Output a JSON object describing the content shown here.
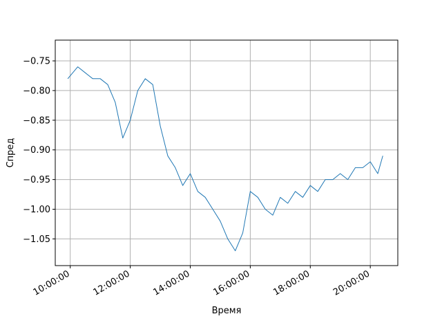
{
  "chart_data": {
    "type": "line",
    "title": "",
    "xlabel": "Время",
    "ylabel": "Спред",
    "grid": true,
    "line_color": "#1f77b4",
    "grid_color": "#b0b0b0",
    "xlim": [
      "09:30:00",
      "20:55:00"
    ],
    "ylim": [
      -1.095,
      -0.715
    ],
    "x_ticks": [
      "10:00:00",
      "12:00:00",
      "14:00:00",
      "16:00:00",
      "18:00:00",
      "20:00:00"
    ],
    "y_ticks": [
      -0.75,
      -0.8,
      -0.85,
      -0.9,
      -0.95,
      -1.0,
      -1.05
    ],
    "y_tick_labels": [
      "−0.75",
      "−0.80",
      "−0.85",
      "−0.90",
      "−0.95",
      "−1.00",
      "−1.05"
    ],
    "series": [
      {
        "x": [
          "09:55:00",
          "10:15:00",
          "10:30:00",
          "10:45:00",
          "11:00:00",
          "11:15:00",
          "11:30:00",
          "11:45:00",
          "12:00:00",
          "12:15:00",
          "12:30:00",
          "12:45:00",
          "13:00:00",
          "13:15:00",
          "13:30:00",
          "13:45:00",
          "14:00:00",
          "14:15:00",
          "14:30:00",
          "14:45:00",
          "15:00:00",
          "15:15:00",
          "15:30:00",
          "15:45:00",
          "16:00:00",
          "16:15:00",
          "16:30:00",
          "16:45:00",
          "17:00:00",
          "17:15:00",
          "17:30:00",
          "17:45:00",
          "18:00:00",
          "18:15:00",
          "18:30:00",
          "18:45:00",
          "19:00:00",
          "19:15:00",
          "19:30:00",
          "19:45:00",
          "20:00:00",
          "20:15:00",
          "20:25:00"
        ],
        "y": [
          -0.78,
          -0.76,
          -0.77,
          -0.78,
          -0.78,
          -0.79,
          -0.82,
          -0.88,
          -0.85,
          -0.8,
          -0.78,
          -0.79,
          -0.86,
          -0.91,
          -0.93,
          -0.96,
          -0.94,
          -0.97,
          -0.98,
          -1.0,
          -1.02,
          -1.05,
          -1.07,
          -1.04,
          -0.97,
          -0.98,
          -1.0,
          -1.01,
          -0.98,
          -0.99,
          -0.97,
          -0.98,
          -0.96,
          -0.97,
          -0.95,
          -0.95,
          -0.94,
          -0.95,
          -0.93,
          -0.93,
          -0.92,
          -0.94,
          -0.91
        ]
      }
    ]
  }
}
